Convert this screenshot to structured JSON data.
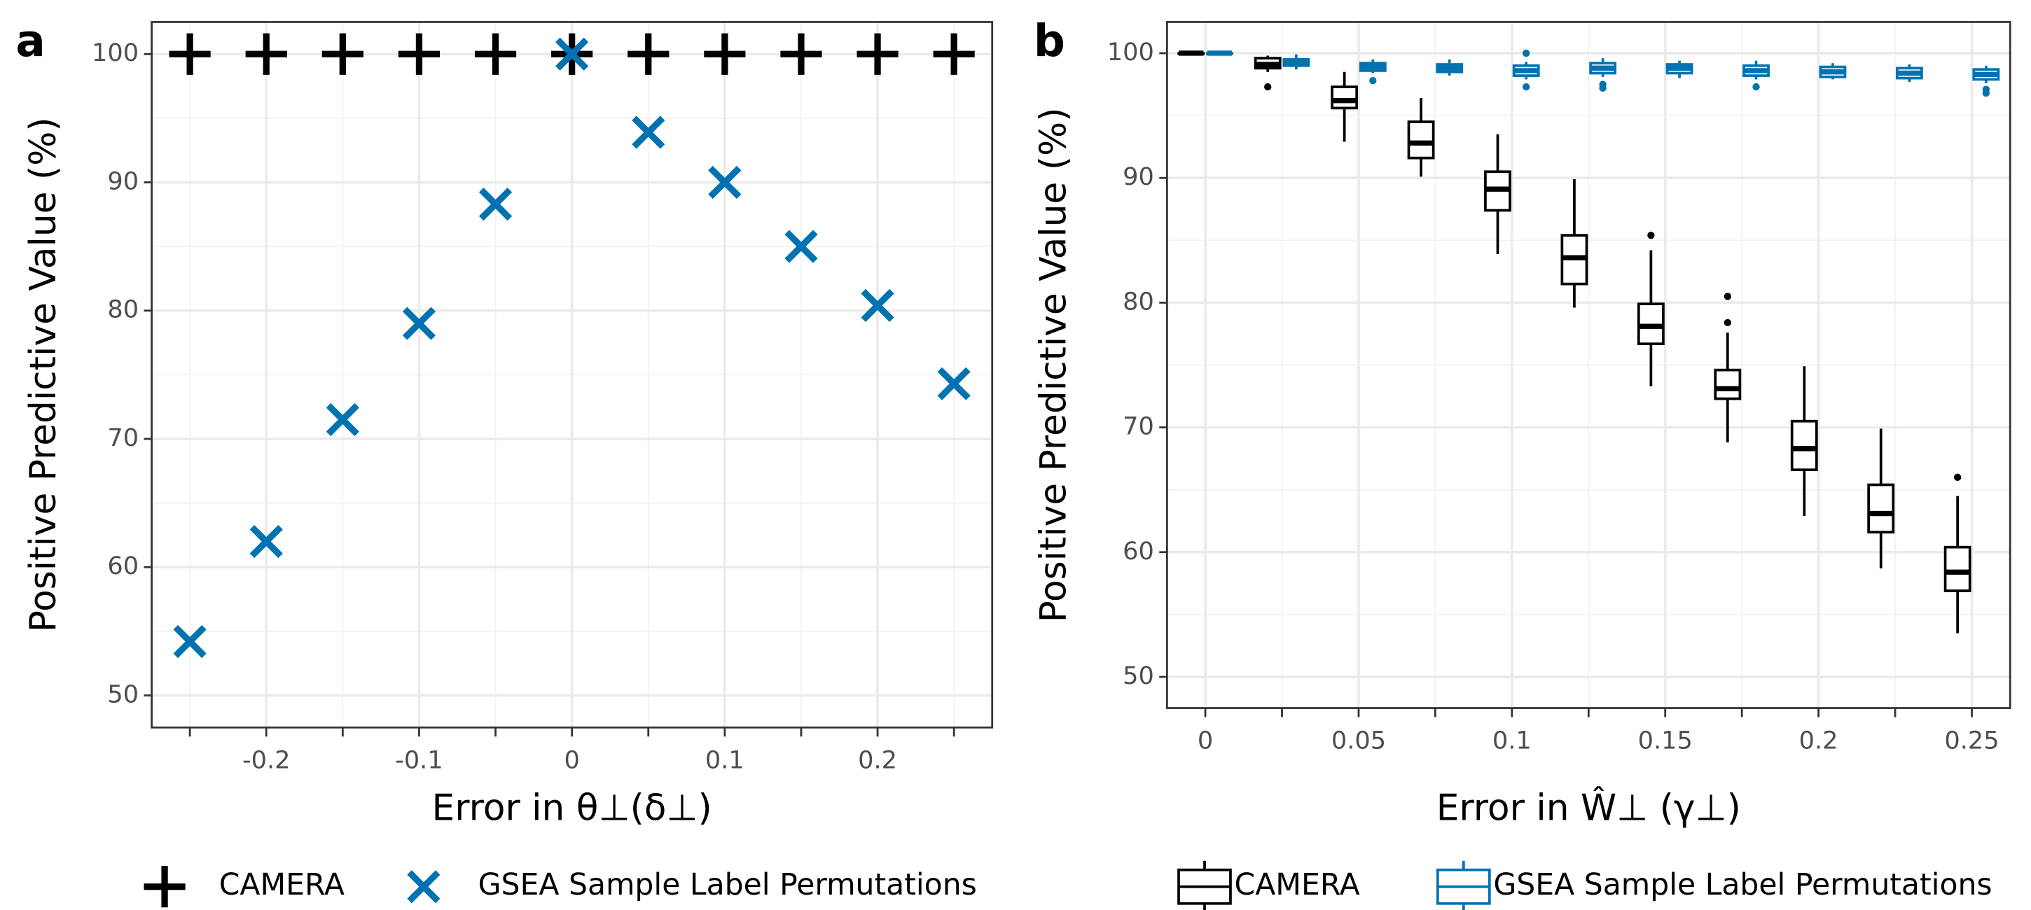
{
  "chart_data": [
    {
      "type": "scatter",
      "panel": "a",
      "xlabel": "Error in θ⊥(δ⊥)",
      "ylabel": "Positive Predictive Value (%)",
      "x": [
        -0.25,
        -0.2,
        -0.15,
        -0.1,
        -0.05,
        0,
        0.05,
        0.1,
        0.15,
        0.2,
        0.25
      ],
      "series": [
        {
          "name": "CAMERA",
          "color": "#000000",
          "marker": "plus",
          "values": [
            100,
            100,
            100,
            100,
            100,
            100,
            100,
            100,
            100,
            100,
            100
          ]
        },
        {
          "name": "GSEA Sample Label Permutations",
          "color": "#0072B2",
          "marker": "cross",
          "values": [
            54.2,
            62,
            71.5,
            79,
            88.3,
            100,
            93.9,
            90,
            85,
            80.4,
            74.3
          ]
        }
      ],
      "xlim": [
        -0.275,
        0.275
      ],
      "xticks": [
        -0.2,
        -0.1,
        0,
        0.1,
        0.2
      ],
      "xminorticks": [
        -0.25,
        -0.15,
        -0.05,
        0.05,
        0.15,
        0.25
      ],
      "ylim": [
        47.5,
        102.5
      ],
      "yticks": [
        50,
        60,
        70,
        80,
        90,
        100
      ],
      "grid": true
    },
    {
      "type": "box",
      "panel": "b",
      "xlabel": "Error in Ŵ⊥ (γ⊥)",
      "ylabel": "Positive Predictive Value (%)",
      "x": [
        0,
        0.025,
        0.05,
        0.075,
        0.1,
        0.125,
        0.15,
        0.175,
        0.2,
        0.225,
        0.25
      ],
      "series": [
        {
          "name": "CAMERA",
          "color": "#000000",
          "whisker_low": [
            100,
            98.5,
            92.9,
            90.1,
            83.9,
            79.6,
            73.3,
            68.8,
            62.9,
            58.7,
            53.5
          ],
          "q1": [
            100,
            98.8,
            95.6,
            91.6,
            87.4,
            81.5,
            76.7,
            72.3,
            66.6,
            61.6,
            56.9
          ],
          "median": [
            100,
            99.1,
            96.2,
            92.8,
            89.1,
            83.6,
            78.1,
            73.1,
            68.3,
            63.1,
            58.4
          ],
          "q3": [
            100,
            99.6,
            97.3,
            94.5,
            90.5,
            85.4,
            79.9,
            74.6,
            70.5,
            65.4,
            60.4
          ],
          "whisker_high": [
            100,
            99.8,
            98.5,
            96.4,
            93.5,
            89.9,
            84.2,
            77.6,
            74.9,
            69.9,
            64.5
          ],
          "outliers": [
            [],
            [
              97.3
            ],
            [],
            [],
            [],
            [],
            [
              85.4
            ],
            [
              78.4,
              80.5
            ],
            [],
            [],
            [
              66
            ]
          ]
        },
        {
          "name": "GSEA Sample Label Permutations",
          "color": "#0072B2",
          "whisker_low": [
            100,
            98.7,
            98.4,
            98.2,
            97.9,
            98.1,
            98,
            97.9,
            97.9,
            97.7,
            97.6
          ],
          "q1": [
            100,
            99,
            98.6,
            98.5,
            98.2,
            98.4,
            98.4,
            98.2,
            98.1,
            98,
            97.9
          ],
          "median": [
            100,
            99.2,
            98.9,
            98.8,
            98.6,
            98.8,
            98.8,
            98.6,
            98.5,
            98.4,
            98.3
          ],
          "q3": [
            100,
            99.5,
            99.2,
            99.1,
            99,
            99.2,
            99.1,
            99,
            98.9,
            98.8,
            98.7
          ],
          "whisker_high": [
            100,
            99.9,
            99.5,
            99.5,
            99.3,
            99.6,
            99.4,
            99.4,
            99.2,
            99.1,
            99
          ],
          "outliers": [
            [],
            [],
            [
              97.8
            ],
            [],
            [
              97.3,
              100
            ],
            [
              97.5,
              97.2
            ],
            [],
            [
              97.3
            ],
            [],
            [],
            [
              96.8,
              97.1
            ]
          ]
        }
      ],
      "xlim": [
        -0.0125,
        0.2625
      ],
      "xticks": [
        0,
        0.05,
        0.1,
        0.15,
        0.2,
        0.25
      ],
      "xminorticks": [
        0.025,
        0.075,
        0.125,
        0.175,
        0.225
      ],
      "ylim": [
        47.5,
        102.5
      ],
      "yticks": [
        50,
        60,
        70,
        80,
        90,
        100
      ],
      "grid": true
    }
  ]
}
